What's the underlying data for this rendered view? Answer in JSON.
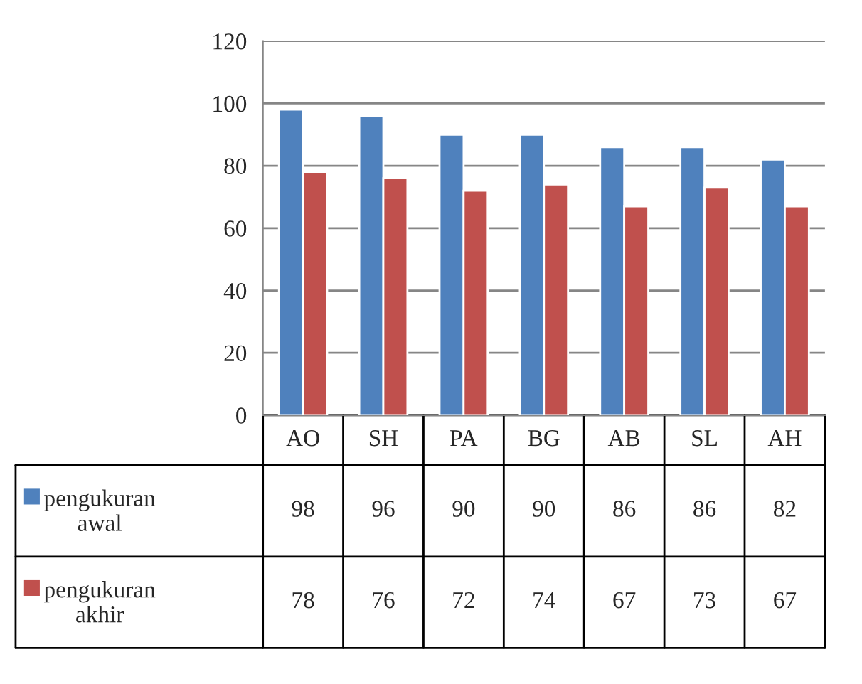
{
  "chart_data": {
    "type": "bar",
    "categories": [
      "AO",
      "SH",
      "PA",
      "BG",
      "AB",
      "SL",
      "AH"
    ],
    "series": [
      {
        "name": "pengukuran awal",
        "color": "#4f81bd",
        "values": [
          98,
          96,
          90,
          90,
          86,
          86,
          82
        ]
      },
      {
        "name": "pengukuran akhir",
        "color": "#c0504d",
        "values": [
          78,
          76,
          72,
          74,
          67,
          73,
          67
        ]
      }
    ],
    "ylim": [
      0,
      120
    ],
    "yticks": [
      0,
      20,
      40,
      60,
      80,
      100,
      120
    ],
    "grid": "y",
    "legend": "bottom left",
    "data_labels": true
  }
}
